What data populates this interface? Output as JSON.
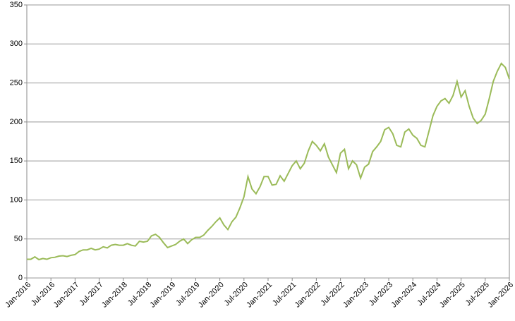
{
  "chart_data": {
    "type": "line",
    "x": [
      "2016-01",
      "2016-02",
      "2016-03",
      "2016-04",
      "2016-05",
      "2016-06",
      "2016-07",
      "2016-08",
      "2016-09",
      "2016-10",
      "2016-11",
      "2016-12",
      "2017-01",
      "2017-02",
      "2017-03",
      "2017-04",
      "2017-05",
      "2017-06",
      "2017-07",
      "2017-08",
      "2017-09",
      "2017-10",
      "2017-11",
      "2017-12",
      "2018-01",
      "2018-02",
      "2018-03",
      "2018-04",
      "2018-05",
      "2018-06",
      "2018-07",
      "2018-08",
      "2018-09",
      "2018-10",
      "2018-11",
      "2018-12",
      "2019-01",
      "2019-02",
      "2019-03",
      "2019-04",
      "2019-05",
      "2019-06",
      "2019-07",
      "2019-08",
      "2019-09",
      "2019-10",
      "2019-11",
      "2019-12",
      "2020-01",
      "2020-02",
      "2020-03",
      "2020-04",
      "2020-05",
      "2020-06",
      "2020-07",
      "2020-08",
      "2020-09",
      "2020-10",
      "2020-11",
      "2020-12",
      "2021-01",
      "2021-02",
      "2021-03",
      "2021-04",
      "2021-05",
      "2021-06",
      "2021-07",
      "2021-08",
      "2021-09",
      "2021-10",
      "2021-11",
      "2021-12",
      "2022-01",
      "2022-02",
      "2022-03",
      "2022-04",
      "2022-05",
      "2022-06",
      "2022-07",
      "2022-08",
      "2022-09",
      "2022-10",
      "2022-11",
      "2022-12",
      "2023-01",
      "2023-02",
      "2023-03",
      "2023-04",
      "2023-05",
      "2023-06",
      "2023-07",
      "2023-08",
      "2023-09",
      "2023-10",
      "2023-11",
      "2023-12",
      "2024-01",
      "2024-02",
      "2024-03",
      "2024-04",
      "2024-05",
      "2024-06",
      "2024-07",
      "2024-08",
      "2024-09",
      "2024-10",
      "2024-11",
      "2024-12",
      "2025-01",
      "2025-02",
      "2025-03",
      "2025-04",
      "2025-05",
      "2025-06",
      "2025-07",
      "2025-08",
      "2025-09",
      "2025-10",
      "2025-11",
      "2025-12",
      "2026-01"
    ],
    "series": [
      {
        "color": "#9bbb59",
        "values": [
          24,
          24,
          27,
          23.5,
          25,
          24,
          26,
          26.5,
          28,
          28.5,
          27.5,
          29,
          30,
          34,
          36,
          36,
          38,
          36,
          37,
          40,
          38.5,
          42,
          43,
          42,
          42,
          44,
          42,
          41,
          47,
          46,
          47,
          54,
          56,
          52,
          45,
          39,
          41,
          43,
          47,
          50,
          44,
          49,
          52,
          52,
          55,
          61,
          66,
          72,
          77,
          68,
          62,
          72,
          78,
          90,
          104,
          130,
          114,
          108,
          117,
          130,
          130,
          119,
          120,
          131,
          124,
          134,
          144,
          150,
          140,
          147,
          163,
          175,
          170,
          163,
          172,
          155,
          145,
          135,
          160,
          165,
          140,
          150,
          145,
          128,
          142,
          146,
          162,
          168,
          175,
          190,
          193,
          185,
          170,
          168,
          187,
          191,
          183,
          179,
          170,
          168,
          188,
          208,
          220,
          227,
          230,
          224,
          234,
          252,
          232,
          240,
          220,
          205,
          198,
          202,
          210,
          230,
          252,
          265,
          275,
          270,
          255
        ]
      }
    ],
    "xlim": [
      "2016-01",
      "2026-01"
    ],
    "xticks": [
      {
        "value": "2016-01",
        "label": "Jan-2016"
      },
      {
        "value": "2016-07",
        "label": "Jul-2016"
      },
      {
        "value": "2017-01",
        "label": "Jan-2017"
      },
      {
        "value": "2017-07",
        "label": "Jul-2017"
      },
      {
        "value": "2018-01",
        "label": "Jan-2018"
      },
      {
        "value": "2018-07",
        "label": "Jul-2018"
      },
      {
        "value": "2019-01",
        "label": "Jan-2019"
      },
      {
        "value": "2019-07",
        "label": "Jul-2019"
      },
      {
        "value": "2020-01",
        "label": "Jan-2020"
      },
      {
        "value": "2020-07",
        "label": "Jul-2020"
      },
      {
        "value": "2021-01",
        "label": "Jan-2021"
      },
      {
        "value": "2021-07",
        "label": "Jul-2021"
      },
      {
        "value": "2022-01",
        "label": "Jan-2022"
      },
      {
        "value": "2022-07",
        "label": "Jul-2022"
      },
      {
        "value": "2023-01",
        "label": "Jan-2023"
      },
      {
        "value": "2023-07",
        "label": "Jul-2023"
      },
      {
        "value": "2024-01",
        "label": "Jan-2024"
      },
      {
        "value": "2024-07",
        "label": "Jul-2024"
      },
      {
        "value": "2025-01",
        "label": "Jan-2025"
      },
      {
        "value": "2025-07",
        "label": "Jul-2025"
      },
      {
        "value": "2026-01",
        "label": "Jan-2026"
      }
    ],
    "ylim": [
      0,
      350
    ],
    "yticks": [
      0,
      50,
      100,
      150,
      200,
      250,
      300,
      350
    ],
    "grid": true
  }
}
